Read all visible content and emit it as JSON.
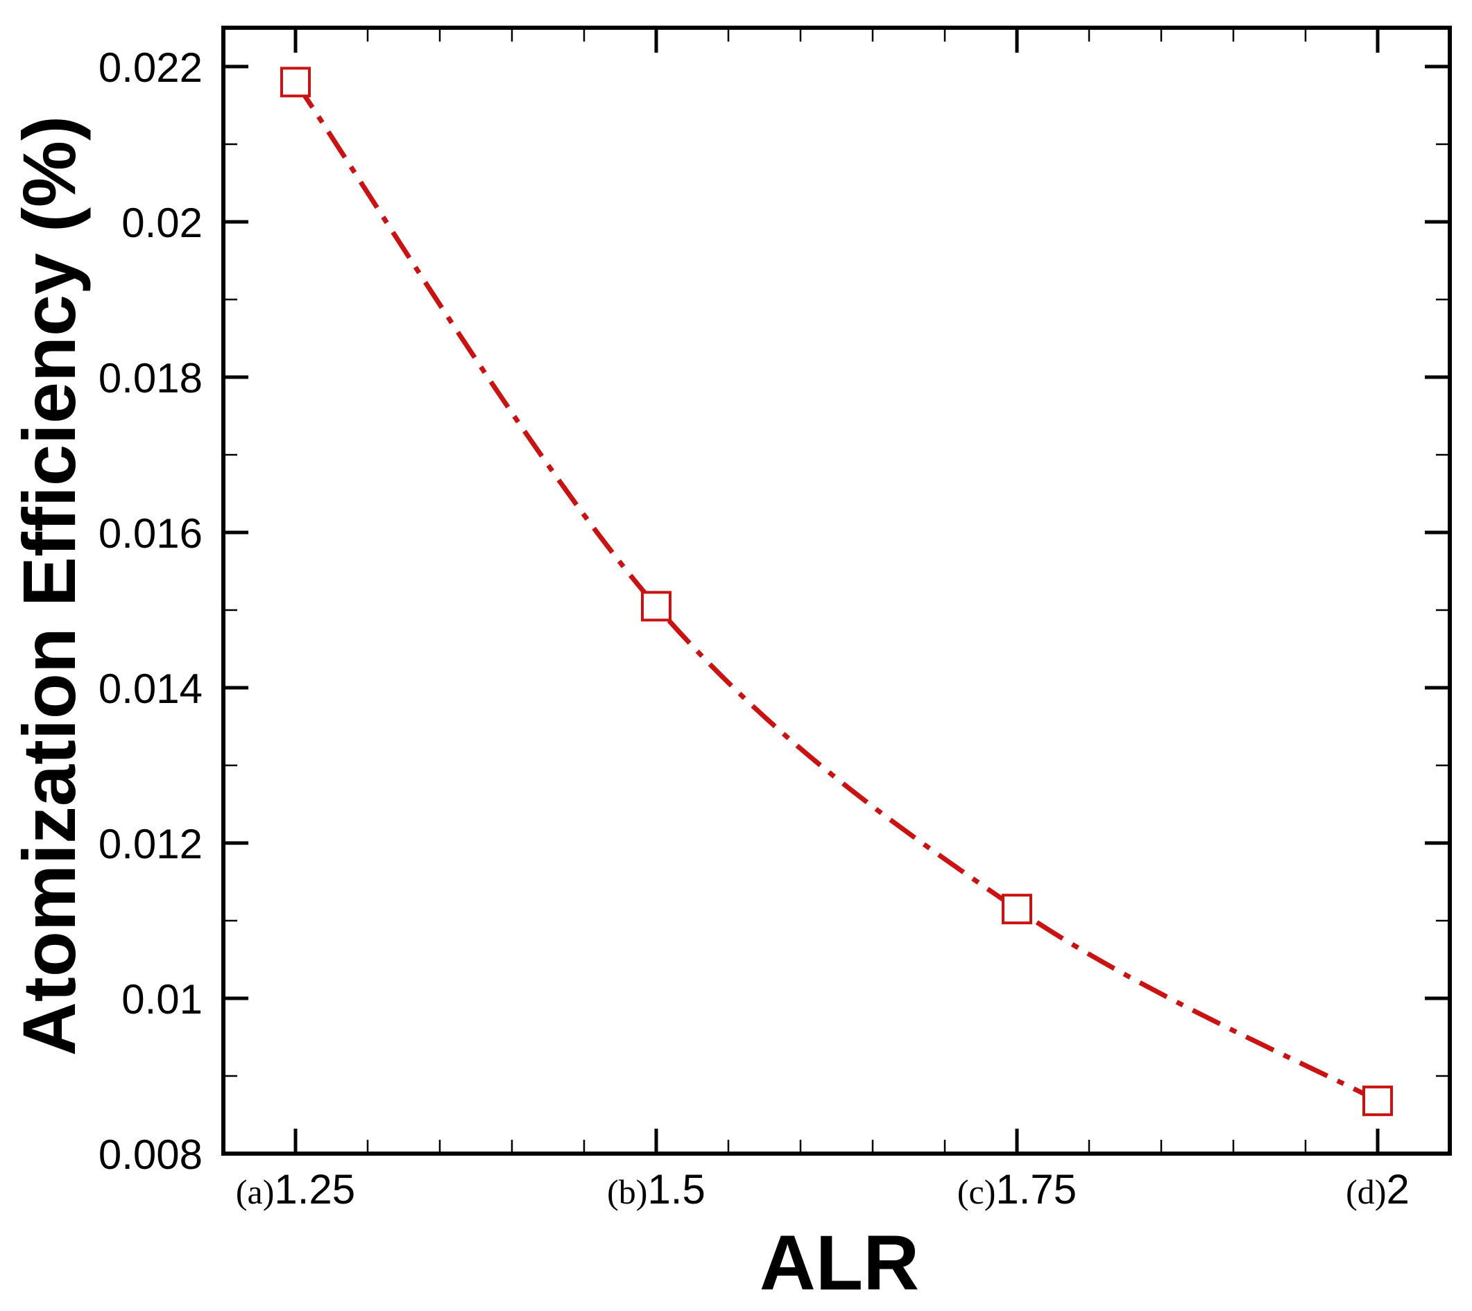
{
  "chart_data": {
    "type": "line",
    "title": "",
    "xlabel": "ALR",
    "ylabel": "Atomization Efficiency (%)",
    "x": [
      1.25,
      1.5,
      1.75,
      2
    ],
    "x_ticks": [
      {
        "value": 1.25,
        "prefix": "(a)",
        "label": "1.25"
      },
      {
        "value": 1.5,
        "prefix": "(b)",
        "label": "1.5"
      },
      {
        "value": 1.75,
        "prefix": "(c)",
        "label": "1.75"
      },
      {
        "value": 2,
        "prefix": "(d)",
        "label": "2"
      }
    ],
    "y_ticks": [
      "0.008",
      "0.01",
      "0.012",
      "0.014",
      "0.016",
      "0.018",
      "0.02",
      "0.022"
    ],
    "xlim": [
      1.2,
      2.05
    ],
    "ylim": [
      0.008,
      0.0225
    ],
    "grid": false,
    "legend": "none",
    "series": [
      {
        "values": [
          0.0218,
          0.01505,
          0.01115,
          0.00868
        ],
        "color": "#cc1111",
        "line_style": "dash-dot",
        "marker": "open-square"
      }
    ]
  }
}
